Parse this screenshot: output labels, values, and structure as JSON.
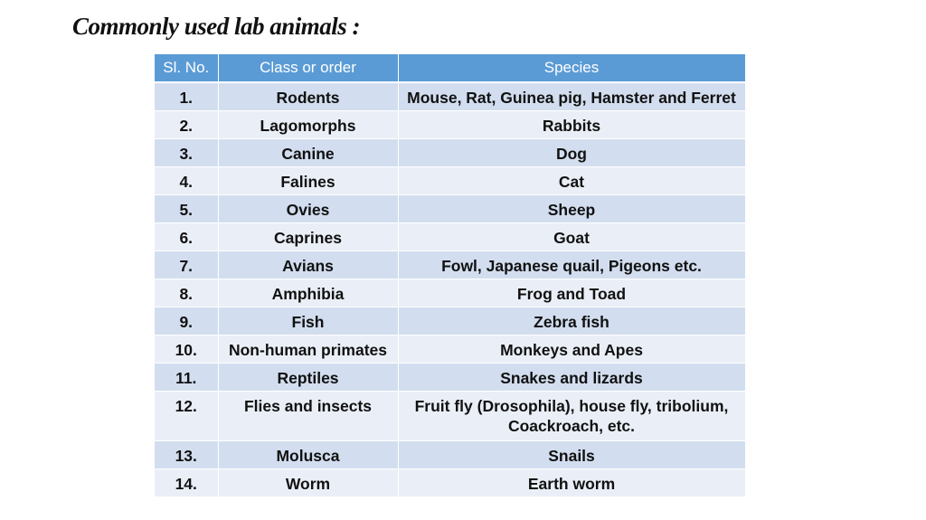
{
  "slide": {
    "title": "Commonly used lab animals :"
  },
  "table": {
    "headers": [
      "Sl. No.",
      "Class or order",
      "Species"
    ],
    "rows": [
      {
        "sl": "1.",
        "class": "Rodents",
        "species": "Mouse, Rat, Guinea pig, Hamster and Ferret"
      },
      {
        "sl": "2.",
        "class": "Lagomorphs",
        "species": "Rabbits"
      },
      {
        "sl": "3.",
        "class": "Canine",
        "species": "Dog"
      },
      {
        "sl": "4.",
        "class": "Falines",
        "species": "Cat"
      },
      {
        "sl": "5.",
        "class": "Ovies",
        "species": "Sheep"
      },
      {
        "sl": "6.",
        "class": "Caprines",
        "species": "Goat"
      },
      {
        "sl": "7.",
        "class": "Avians",
        "species": "Fowl, Japanese quail, Pigeons etc."
      },
      {
        "sl": "8.",
        "class": "Amphibia",
        "species": "Frog and Toad"
      },
      {
        "sl": "9.",
        "class": "Fish",
        "species": "Zebra fish"
      },
      {
        "sl": "10.",
        "class": "Non-human primates",
        "species": "Monkeys and Apes"
      },
      {
        "sl": "11.",
        "class": "Reptiles",
        "species": "Snakes and lizards"
      },
      {
        "sl": "12.",
        "class": "Flies and insects",
        "species": "Fruit fly (Drosophila), house fly, tribolium, Coackroach, etc."
      },
      {
        "sl": "13.",
        "class": "Molusca",
        "species": "Snails"
      },
      {
        "sl": "14.",
        "class": "Worm",
        "species": "Earth worm"
      }
    ]
  },
  "colors": {
    "header_bg": "#5b9bd5",
    "row_odd_bg": "#d2deef",
    "row_even_bg": "#eaeff7"
  }
}
